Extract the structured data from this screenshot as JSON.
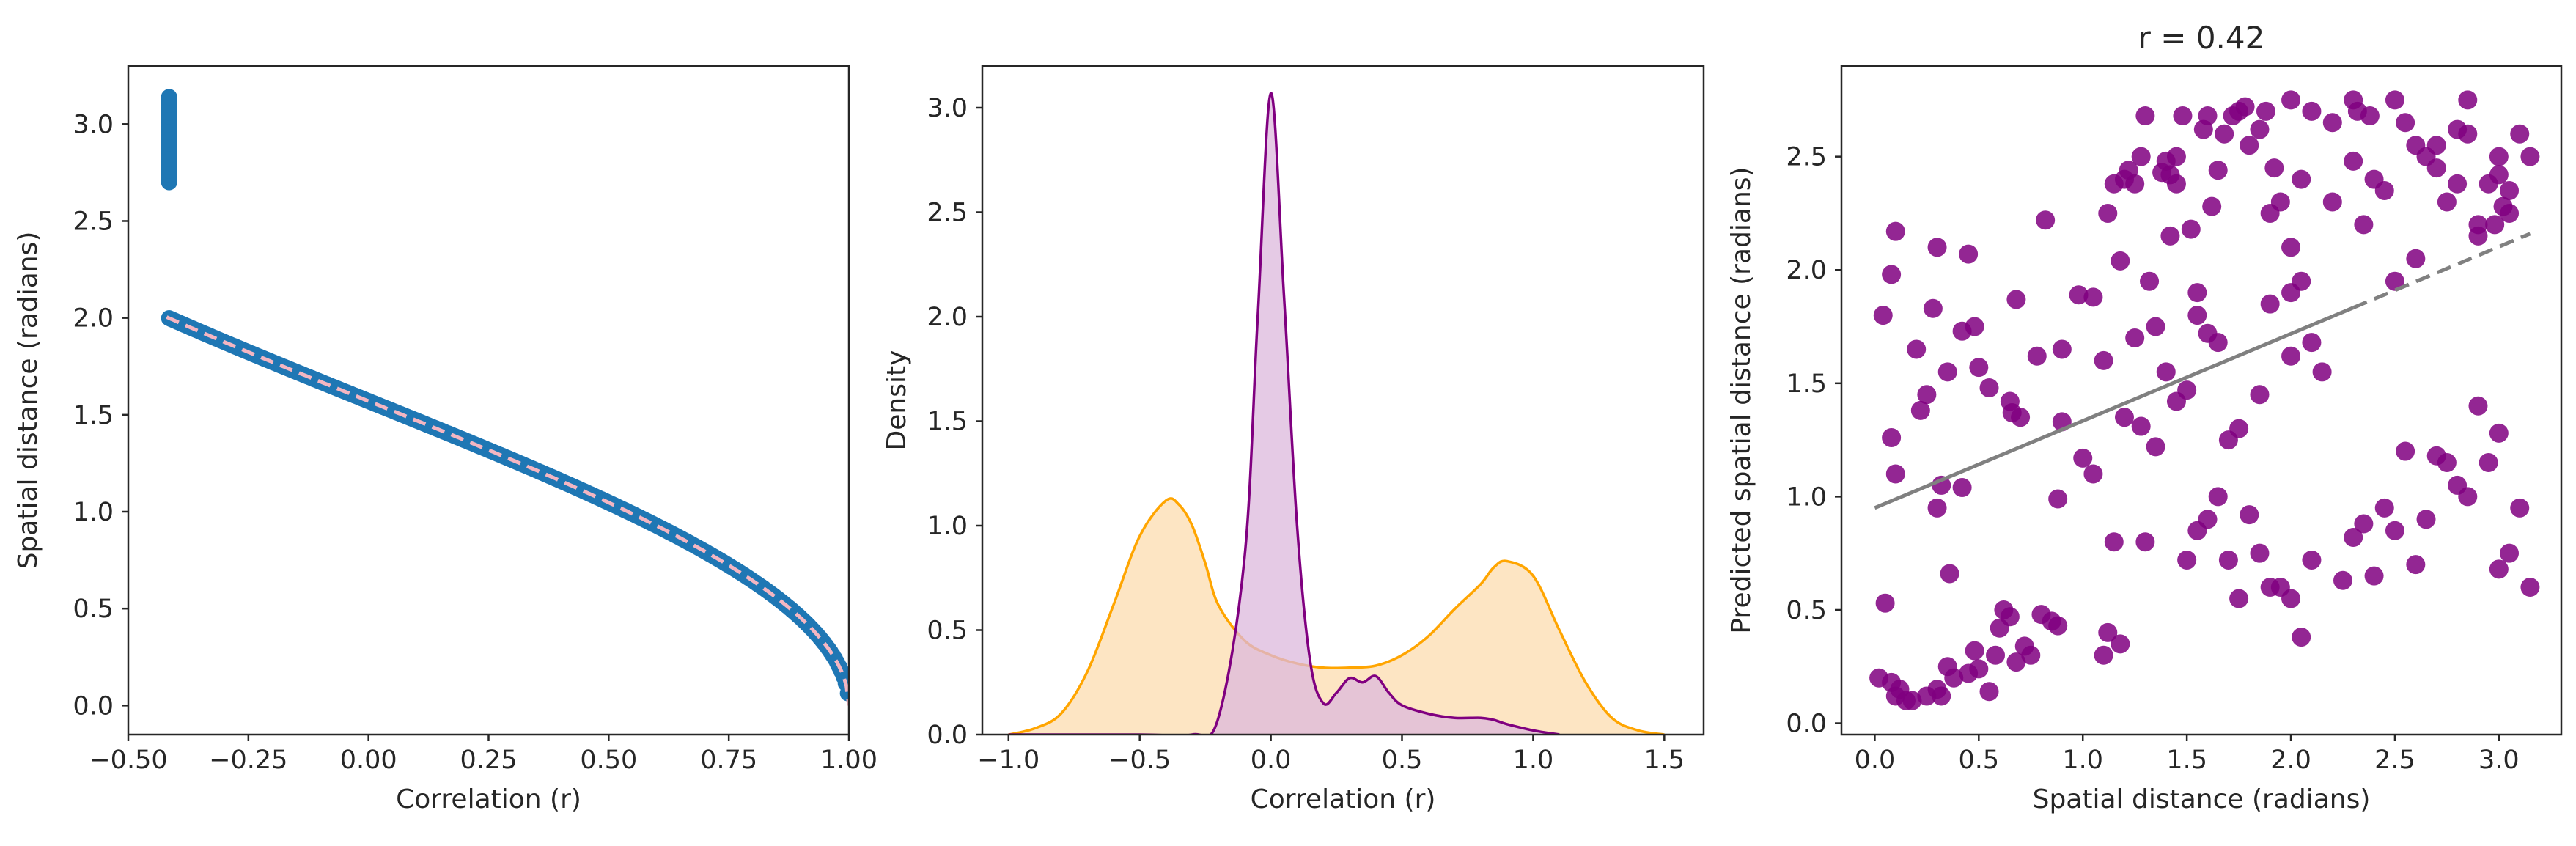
{
  "chart_data": [
    {
      "type": "scatter",
      "xlabel": "Correlation (r)",
      "ylabel": "Spatial distance (radians)",
      "xlim": [
        -0.5,
        1.0
      ],
      "ylim": [
        -0.15,
        3.3
      ],
      "xticks": [
        "−0.50",
        "−0.25",
        "0.00",
        "0.25",
        "0.50",
        "0.75",
        "1.00"
      ],
      "yticks": [
        "0.0",
        "0.5",
        "1.0",
        "1.5",
        "2.0",
        "2.5",
        "3.0"
      ],
      "grid": false,
      "series": [
        {
          "style": "markers",
          "color": "#1f77b4",
          "relation": "y = arccos(x), dense points from x = -0.42 to x = 1.0 (vertical cluster at x≈-0.42 from y≈2.7 to 3.14)"
        },
        {
          "style": "dashed-line",
          "color": "#f4b6c2",
          "relation": "fitted curve y = arccos(x)"
        }
      ]
    },
    {
      "type": "area",
      "xlabel": "Correlation (r)",
      "ylabel": "Density",
      "xlim": [
        -1.1,
        1.65
      ],
      "ylim": [
        0,
        3.2
      ],
      "xticks": [
        "−1.0",
        "−0.5",
        "0.0",
        "0.5",
        "1.0",
        "1.5"
      ],
      "yticks": [
        "0.0",
        "0.5",
        "1.0",
        "1.5",
        "2.0",
        "2.5",
        "3.0"
      ],
      "grid": false,
      "series": [
        {
          "style": "kde",
          "line_color": "#800080",
          "fill_color": "#dcb8dc",
          "x": [
            -1.0,
            -0.5,
            -0.3,
            -0.2,
            -0.1,
            -0.05,
            0.0,
            0.05,
            0.1,
            0.15,
            0.2,
            0.25,
            0.3,
            0.35,
            0.4,
            0.45,
            0.5,
            0.6,
            0.7,
            0.8,
            0.85,
            0.9,
            1.0,
            1.1
          ],
          "y": [
            0.0,
            0.0,
            0.0,
            0.08,
            0.85,
            2.0,
            3.07,
            2.1,
            1.0,
            0.35,
            0.15,
            0.2,
            0.27,
            0.25,
            0.28,
            0.2,
            0.14,
            0.1,
            0.08,
            0.08,
            0.07,
            0.05,
            0.02,
            0.0
          ]
        },
        {
          "style": "kde",
          "line_color": "#ffa500",
          "fill_color": "#fde0b8",
          "x": [
            -1.0,
            -0.9,
            -0.8,
            -0.7,
            -0.6,
            -0.5,
            -0.4,
            -0.35,
            -0.3,
            -0.25,
            -0.2,
            -0.1,
            0.0,
            0.1,
            0.2,
            0.3,
            0.4,
            0.5,
            0.6,
            0.7,
            0.8,
            0.85,
            0.9,
            1.0,
            1.1,
            1.2,
            1.3,
            1.4,
            1.5
          ],
          "y": [
            0.0,
            0.03,
            0.1,
            0.3,
            0.62,
            0.95,
            1.12,
            1.1,
            1.0,
            0.82,
            0.62,
            0.45,
            0.38,
            0.34,
            0.32,
            0.32,
            0.33,
            0.38,
            0.47,
            0.6,
            0.72,
            0.8,
            0.83,
            0.76,
            0.5,
            0.25,
            0.08,
            0.02,
            0.0
          ]
        }
      ]
    },
    {
      "type": "scatter",
      "title": "r = 0.42",
      "xlabel": "Spatial distance (radians)",
      "ylabel": "Predicted spatial distance (radians)",
      "xlim": [
        -0.16,
        3.3
      ],
      "ylim": [
        -0.05,
        2.9
      ],
      "xticks": [
        "0.0",
        "0.5",
        "1.0",
        "1.5",
        "2.0",
        "2.5",
        "3.0"
      ],
      "yticks": [
        "0.0",
        "0.5",
        "1.0",
        "1.5",
        "2.0",
        "2.5"
      ],
      "grid": false,
      "point_color": "#800080",
      "points": [
        [
          0.02,
          0.2
        ],
        [
          0.08,
          0.18
        ],
        [
          0.1,
          0.12
        ],
        [
          0.12,
          0.15
        ],
        [
          0.15,
          0.1
        ],
        [
          0.18,
          0.1
        ],
        [
          0.25,
          0.12
        ],
        [
          0.3,
          0.15
        ],
        [
          0.32,
          0.12
        ],
        [
          0.35,
          0.25
        ],
        [
          0.38,
          0.2
        ],
        [
          0.45,
          0.22
        ],
        [
          0.48,
          0.32
        ],
        [
          0.5,
          0.24
        ],
        [
          0.55,
          0.14
        ],
        [
          0.58,
          0.3
        ],
        [
          0.6,
          0.42
        ],
        [
          0.62,
          0.5
        ],
        [
          0.65,
          0.47
        ],
        [
          0.68,
          0.27
        ],
        [
          0.72,
          0.34
        ],
        [
          0.75,
          0.3
        ],
        [
          0.8,
          0.48
        ],
        [
          0.85,
          0.45
        ],
        [
          0.88,
          0.43
        ],
        [
          1.1,
          0.3
        ],
        [
          1.12,
          0.4
        ],
        [
          1.18,
          0.35
        ],
        [
          0.05,
          0.53
        ],
        [
          0.36,
          0.66
        ],
        [
          0.04,
          1.8
        ],
        [
          0.08,
          1.98
        ],
        [
          0.1,
          2.17
        ],
        [
          0.2,
          1.65
        ],
        [
          0.3,
          2.1
        ],
        [
          0.28,
          1.83
        ],
        [
          0.42,
          1.73
        ],
        [
          0.45,
          2.07
        ],
        [
          0.48,
          1.75
        ],
        [
          0.25,
          1.45
        ],
        [
          0.22,
          1.38
        ],
        [
          0.35,
          1.55
        ],
        [
          0.5,
          1.57
        ],
        [
          0.55,
          1.48
        ],
        [
          0.08,
          1.26
        ],
        [
          0.1,
          1.1
        ],
        [
          0.3,
          0.95
        ],
        [
          0.32,
          1.05
        ],
        [
          0.42,
          1.04
        ],
        [
          0.65,
          1.42
        ],
        [
          0.66,
          1.37
        ],
        [
          0.68,
          1.87
        ],
        [
          0.7,
          1.35
        ],
        [
          0.78,
          1.62
        ],
        [
          0.82,
          2.22
        ],
        [
          0.9,
          1.65
        ],
        [
          0.9,
          1.33
        ],
        [
          0.88,
          0.99
        ],
        [
          0.98,
          1.89
        ],
        [
          1.0,
          1.17
        ],
        [
          1.05,
          1.88
        ],
        [
          1.1,
          1.6
        ],
        [
          1.12,
          2.25
        ],
        [
          1.15,
          2.38
        ],
        [
          1.18,
          2.04
        ],
        [
          1.2,
          2.4
        ],
        [
          1.22,
          2.44
        ],
        [
          1.25,
          2.38
        ],
        [
          1.28,
          2.5
        ],
        [
          1.3,
          2.68
        ],
        [
          1.28,
          1.31
        ],
        [
          1.3,
          0.8
        ],
        [
          1.32,
          1.95
        ],
        [
          1.35,
          1.22
        ],
        [
          1.38,
          2.43
        ],
        [
          1.4,
          2.48
        ],
        [
          1.42,
          2.42
        ],
        [
          1.42,
          2.15
        ],
        [
          1.45,
          2.5
        ],
        [
          1.45,
          2.38
        ],
        [
          1.48,
          2.68
        ],
        [
          1.5,
          1.47
        ],
        [
          1.52,
          2.18
        ],
        [
          1.55,
          1.9
        ],
        [
          1.58,
          2.62
        ],
        [
          1.6,
          2.68
        ],
        [
          1.62,
          2.28
        ],
        [
          1.65,
          2.44
        ],
        [
          1.68,
          2.6
        ],
        [
          1.72,
          2.68
        ],
        [
          1.75,
          2.7
        ],
        [
          1.78,
          2.72
        ],
        [
          1.8,
          2.55
        ],
        [
          1.85,
          2.62
        ],
        [
          1.88,
          2.7
        ],
        [
          1.9,
          2.25
        ],
        [
          1.92,
          2.45
        ],
        [
          1.95,
          2.3
        ],
        [
          2.0,
          2.75
        ],
        [
          2.0,
          1.9
        ],
        [
          2.05,
          2.4
        ],
        [
          2.1,
          2.7
        ],
        [
          2.2,
          2.65
        ],
        [
          2.3,
          2.75
        ],
        [
          2.32,
          2.7
        ],
        [
          2.35,
          2.2
        ],
        [
          2.38,
          2.68
        ],
        [
          2.3,
          2.48
        ],
        [
          2.5,
          2.75
        ],
        [
          2.55,
          2.65
        ],
        [
          2.6,
          2.55
        ],
        [
          2.65,
          2.5
        ],
        [
          2.7,
          2.45
        ],
        [
          2.75,
          2.3
        ],
        [
          2.8,
          2.38
        ],
        [
          2.85,
          2.6
        ],
        [
          2.85,
          2.75
        ],
        [
          2.9,
          2.2
        ],
        [
          2.95,
          2.38
        ],
        [
          3.0,
          2.42
        ],
        [
          3.05,
          2.35
        ],
        [
          3.1,
          2.6
        ],
        [
          3.15,
          2.5
        ],
        [
          3.05,
          2.25
        ],
        [
          2.98,
          2.2
        ],
        [
          3.0,
          2.5
        ],
        [
          3.02,
          2.28
        ],
        [
          1.5,
          0.72
        ],
        [
          1.55,
          0.85
        ],
        [
          1.6,
          0.9
        ],
        [
          1.65,
          1.0
        ],
        [
          1.7,
          0.72
        ],
        [
          1.75,
          0.55
        ],
        [
          1.8,
          0.92
        ],
        [
          1.85,
          0.75
        ],
        [
          1.9,
          0.6
        ],
        [
          1.95,
          0.6
        ],
        [
          2.0,
          0.55
        ],
        [
          2.05,
          0.38
        ],
        [
          2.1,
          0.72
        ],
        [
          2.25,
          0.63
        ],
        [
          2.3,
          0.82
        ],
        [
          2.35,
          0.88
        ],
        [
          2.4,
          0.65
        ],
        [
          2.45,
          0.95
        ],
        [
          2.5,
          0.85
        ],
        [
          2.55,
          1.2
        ],
        [
          2.6,
          0.7
        ],
        [
          2.65,
          0.9
        ],
        [
          2.7,
          1.18
        ],
        [
          2.75,
          1.15
        ],
        [
          2.8,
          1.05
        ],
        [
          2.85,
          1.0
        ],
        [
          2.9,
          1.4
        ],
        [
          2.95,
          1.15
        ],
        [
          3.0,
          1.28
        ],
        [
          3.05,
          0.75
        ],
        [
          3.1,
          0.95
        ],
        [
          3.15,
          0.6
        ],
        [
          3.0,
          0.68
        ],
        [
          2.0,
          1.62
        ],
        [
          2.1,
          1.68
        ],
        [
          1.7,
          1.25
        ],
        [
          1.75,
          1.3
        ],
        [
          1.85,
          1.45
        ],
        [
          1.4,
          1.55
        ],
        [
          1.45,
          1.42
        ],
        [
          1.2,
          1.35
        ],
        [
          1.05,
          1.1
        ],
        [
          1.15,
          0.8
        ],
        [
          1.35,
          1.75
        ],
        [
          1.25,
          1.7
        ],
        [
          1.55,
          1.8
        ],
        [
          1.6,
          1.72
        ],
        [
          1.65,
          1.68
        ],
        [
          1.9,
          1.85
        ],
        [
          2.0,
          2.1
        ],
        [
          2.05,
          1.95
        ],
        [
          2.15,
          1.55
        ],
        [
          2.2,
          2.3
        ],
        [
          2.4,
          2.4
        ],
        [
          2.45,
          2.35
        ],
        [
          2.6,
          2.05
        ],
        [
          2.5,
          1.95
        ],
        [
          2.7,
          2.55
        ],
        [
          2.8,
          2.62
        ],
        [
          2.9,
          2.15
        ]
      ],
      "regression": {
        "x0": 0.0,
        "y0": 0.95,
        "x1": 3.15,
        "y1": 2.16,
        "solid_until_x": 2.3,
        "color": "#808080"
      }
    }
  ]
}
